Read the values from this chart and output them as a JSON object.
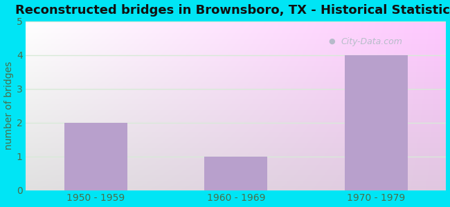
{
  "title": "Reconstructed bridges in Brownsboro, TX - Historical Statistics",
  "categories": [
    "1950 - 1959",
    "1960 - 1969",
    "1970 - 1979"
  ],
  "values": [
    2,
    1,
    4
  ],
  "bar_color": "#b8a0cc",
  "ylim": [
    0,
    5
  ],
  "yticks": [
    0,
    1,
    2,
    3,
    4,
    5
  ],
  "ylabel": "number of bridges",
  "background_outer": "#00e5f5",
  "grid_color": "#d8ead8",
  "title_fontsize": 13,
  "tick_fontsize": 10,
  "ylabel_fontsize": 10,
  "tick_color": "#4a6e4a",
  "title_color": "#111111",
  "watermark": "City-Data.com",
  "grad_bottom_left": "#b8f0c8",
  "grad_top_right": "#f0f8ff"
}
